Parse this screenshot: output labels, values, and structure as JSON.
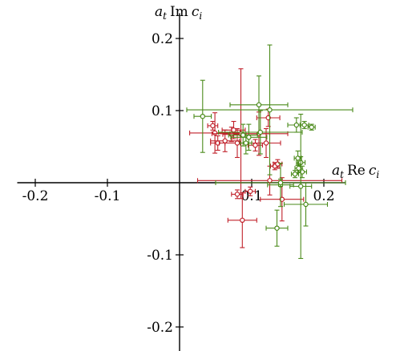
{
  "chart_data": {
    "type": "scatter",
    "title": "",
    "xlabel": "a_t Re c_i",
    "ylabel": "a_t Im c_i",
    "xlabel_parts": {
      "a": "a",
      "t": "t",
      "fn": "Re",
      "c": "c",
      "i": "i"
    },
    "ylabel_parts": {
      "a": "a",
      "t": "t",
      "fn": "Im",
      "c": "c",
      "i": "i"
    },
    "xlim": [
      -0.225,
      0.23
    ],
    "ylim": [
      -0.24,
      0.235
    ],
    "x_ticks": [
      {
        "value": -0.2,
        "label": "-0.2"
      },
      {
        "value": -0.1,
        "label": "-0.1"
      },
      {
        "value": 0.1,
        "label": "0.1"
      },
      {
        "value": 0.2,
        "label": "0.2"
      }
    ],
    "y_ticks": [
      {
        "value": 0.2,
        "label": "0.2"
      },
      {
        "value": 0.1,
        "label": "0.1"
      },
      {
        "value": -0.1,
        "label": "-0.1"
      },
      {
        "value": -0.2,
        "label": "-0.2"
      }
    ],
    "grid": false,
    "series": [
      {
        "color": "#c0202a",
        "points": [
          {
            "x": 0.046,
            "y": 0.079,
            "xerr": 0.007,
            "yerr": 0.006
          },
          {
            "x": 0.049,
            "y": 0.069,
            "xerr": 0.035,
            "yerr": 0.028
          },
          {
            "x": 0.053,
            "y": 0.055,
            "xerr": 0.01,
            "yerr": 0.01
          },
          {
            "x": 0.063,
            "y": 0.058,
            "xerr": 0.02,
            "yerr": 0.015
          },
          {
            "x": 0.072,
            "y": 0.067,
            "xerr": 0.012,
            "yerr": 0.01
          },
          {
            "x": 0.075,
            "y": 0.073,
            "xerr": 0.016,
            "yerr": 0.012
          },
          {
            "x": 0.08,
            "y": 0.055,
            "xerr": 0.025,
            "yerr": 0.02
          },
          {
            "x": 0.085,
            "y": 0.068,
            "xerr": 0.04,
            "yerr": 0.09
          },
          {
            "x": 0.105,
            "y": 0.052,
            "xerr": 0.01,
            "yerr": 0.008
          },
          {
            "x": 0.123,
            "y": 0.09,
            "xerr": 0.016,
            "yerr": 0.012
          },
          {
            "x": 0.132,
            "y": 0.023,
            "xerr": 0.006,
            "yerr": 0.005
          },
          {
            "x": 0.136,
            "y": 0.026,
            "xerr": 0.006,
            "yerr": 0.006
          },
          {
            "x": 0.08,
            "y": -0.016,
            "xerr": 0.008,
            "yerr": 0.006
          },
          {
            "x": 0.098,
            "y": -0.012,
            "xerr": 0.007,
            "yerr": 0.006
          },
          {
            "x": 0.087,
            "y": -0.052,
            "xerr": 0.02,
            "yerr": 0.038
          },
          {
            "x": 0.142,
            "y": -0.023,
            "xerr": 0.03,
            "yerr": 0.03
          },
          {
            "x": 0.125,
            "y": 0.003,
            "xerr": 0.1,
            "yerr": 0.02
          },
          {
            "x": 0.11,
            "y": 0.068,
            "xerr": 0.04,
            "yerr": 0.03
          },
          {
            "x": 0.12,
            "y": 0.055,
            "xerr": 0.02,
            "yerr": 0.02
          }
        ]
      },
      {
        "color": "#4a8a1a",
        "points": [
          {
            "x": 0.032,
            "y": 0.092,
            "xerr": 0.012,
            "yerr": 0.05
          },
          {
            "x": 0.088,
            "y": 0.066,
            "xerr": 0.02,
            "yerr": 0.015
          },
          {
            "x": 0.096,
            "y": 0.063,
            "xerr": 0.025,
            "yerr": 0.018
          },
          {
            "x": 0.11,
            "y": 0.108,
            "xerr": 0.04,
            "yerr": 0.04
          },
          {
            "x": 0.125,
            "y": 0.101,
            "xerr": 0.115,
            "yerr": 0.09
          },
          {
            "x": 0.112,
            "y": 0.07,
            "xerr": 0.058,
            "yerr": 0.03
          },
          {
            "x": 0.162,
            "y": 0.08,
            "xerr": 0.012,
            "yerr": 0.01
          },
          {
            "x": 0.173,
            "y": 0.08,
            "xerr": 0.006,
            "yerr": 0.005
          },
          {
            "x": 0.183,
            "y": 0.077,
            "xerr": 0.005,
            "yerr": 0.004
          },
          {
            "x": 0.164,
            "y": 0.034,
            "xerr": 0.005,
            "yerr": 0.01
          },
          {
            "x": 0.168,
            "y": 0.028,
            "xerr": 0.006,
            "yerr": 0.008
          },
          {
            "x": 0.165,
            "y": 0.02,
            "xerr": 0.005,
            "yerr": 0.006
          },
          {
            "x": 0.16,
            "y": 0.012,
            "xerr": 0.005,
            "yerr": 0.005
          },
          {
            "x": 0.17,
            "y": 0.015,
            "xerr": 0.006,
            "yerr": 0.008
          },
          {
            "x": 0.14,
            "y": -0.003,
            "xerr": 0.018,
            "yerr": 0.03
          },
          {
            "x": 0.168,
            "y": -0.005,
            "xerr": 0.015,
            "yerr": 0.1
          },
          {
            "x": 0.135,
            "y": -0.063,
            "xerr": 0.015,
            "yerr": 0.025
          },
          {
            "x": 0.175,
            "y": -0.03,
            "xerr": 0.03,
            "yerr": 0.03
          },
          {
            "x": 0.092,
            "y": 0.055,
            "xerr": 0.008,
            "yerr": 0.015
          },
          {
            "x": 0.14,
            "y": 0.0,
            "xerr": 0.09,
            "yerr": 0.005
          }
        ]
      }
    ]
  }
}
